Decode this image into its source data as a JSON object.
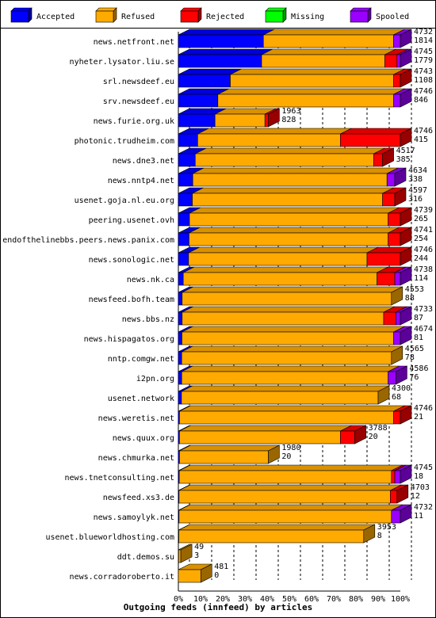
{
  "chart_data": {
    "type": "bar",
    "orientation": "horizontal",
    "stacked": true,
    "title": "Outgoing feeds (innfeed) by articles",
    "xlim": [
      0,
      100
    ],
    "x_ticks": [
      "0%",
      "10%",
      "20%",
      "30%",
      "40%",
      "50%",
      "60%",
      "70%",
      "80%",
      "90%",
      "100%"
    ],
    "grid": "vertical dashed",
    "legend_position": "top",
    "legend": [
      {
        "name": "Accepted",
        "color": "#0000ff"
      },
      {
        "name": "Refused",
        "color": "#ffaa00"
      },
      {
        "name": "Rejected",
        "color": "#ff0000"
      },
      {
        "name": "Missing",
        "color": "#00ff00"
      },
      {
        "name": "Spooled",
        "color": "#9900ff"
      }
    ],
    "categories": [
      {
        "label": "news.netfront.net",
        "offered": 4732,
        "accepted": 1814,
        "segments": [
          38.3,
          58.6,
          0,
          0,
          3.1
        ]
      },
      {
        "label": "nyheter.lysator.liu.se",
        "offered": 4745,
        "accepted": 1779,
        "segments": [
          37.5,
          55.5,
          5.5,
          0,
          1.5
        ]
      },
      {
        "label": "srl.newsdeef.eu",
        "offered": 4743,
        "accepted": 1108,
        "segments": [
          23.4,
          73.6,
          3.0,
          0,
          0
        ]
      },
      {
        "label": "srv.newsdeef.eu",
        "offered": 4746,
        "accepted": 846,
        "segments": [
          17.8,
          79.2,
          0,
          0,
          3.0
        ]
      },
      {
        "label": "news.furie.org.uk",
        "offered": 1963,
        "accepted": 828,
        "segments": [
          16.5,
          22.5,
          1.5,
          0,
          0
        ]
      },
      {
        "label": "photonic.trudheim.com",
        "offered": 4746,
        "accepted": 415,
        "segments": [
          8.7,
          64.3,
          27.0,
          0,
          0
        ]
      },
      {
        "label": "news.dne3.net",
        "offered": 4517,
        "accepted": 385,
        "segments": [
          7.6,
          80.4,
          4.0,
          0,
          0
        ]
      },
      {
        "label": "news.nntp4.net",
        "offered": 4634,
        "accepted": 338,
        "segments": [
          6.5,
          87.5,
          0,
          0,
          3.5
        ]
      },
      {
        "label": "usenet.goja.nl.eu.org",
        "offered": 4597,
        "accepted": 316,
        "segments": [
          6.3,
          85.7,
          5.5,
          0,
          0
        ]
      },
      {
        "label": "peering.usenet.ovh",
        "offered": 4739,
        "accepted": 265,
        "segments": [
          5.0,
          89.5,
          5.5,
          0,
          0
        ]
      },
      {
        "label": "endofthelinebbs.peers.news.panix.com",
        "offered": 4741,
        "accepted": 254,
        "segments": [
          4.8,
          89.7,
          5.5,
          0,
          0
        ]
      },
      {
        "label": "news.sonologic.net",
        "offered": 4746,
        "accepted": 244,
        "segments": [
          4.6,
          80.4,
          15.0,
          0,
          0
        ]
      },
      {
        "label": "news.nk.ca",
        "offered": 4738,
        "accepted": 114,
        "segments": [
          2.2,
          87.3,
          8.0,
          0,
          2.5
        ]
      },
      {
        "label": "newsfeed.bofh.team",
        "offered": 4553,
        "accepted": 88,
        "segments": [
          1.7,
          94.3,
          0,
          0,
          0
        ]
      },
      {
        "label": "news.bbs.nz",
        "offered": 4733,
        "accepted": 87,
        "segments": [
          1.7,
          90.8,
          5.5,
          0,
          2.0
        ]
      },
      {
        "label": "news.hispagatos.org",
        "offered": 4674,
        "accepted": 81,
        "segments": [
          1.6,
          95.4,
          0,
          0,
          3.0
        ]
      },
      {
        "label": "nntp.comgw.net",
        "offered": 4565,
        "accepted": 78,
        "segments": [
          1.5,
          94.5,
          0,
          0,
          0
        ]
      },
      {
        "label": "i2pn.org",
        "offered": 4586,
        "accepted": 76,
        "segments": [
          1.5,
          93.0,
          0,
          0,
          3.5
        ]
      },
      {
        "label": "usenet.network",
        "offered": 4300,
        "accepted": 68,
        "segments": [
          1.4,
          88.6,
          0,
          0,
          0
        ]
      },
      {
        "label": "news.weretis.net",
        "offered": 4746,
        "accepted": 21,
        "segments": [
          0.5,
          96.5,
          3.0,
          0,
          0
        ]
      },
      {
        "label": "news.quux.org",
        "offered": 3788,
        "accepted": 20,
        "segments": [
          0.5,
          72.5,
          6.5,
          0,
          0
        ]
      },
      {
        "label": "news.chmurka.net",
        "offered": 1980,
        "accepted": 20,
        "segments": [
          0.5,
          40.0,
          0,
          0,
          0
        ]
      },
      {
        "label": "news.tnetconsulting.net",
        "offered": 4745,
        "accepted": 18,
        "segments": [
          0.4,
          95.6,
          1.5,
          0,
          2.5
        ]
      },
      {
        "label": "newsfeed.xs3.de",
        "offered": 4703,
        "accepted": 12,
        "segments": [
          0.3,
          95.2,
          3.0,
          0,
          0
        ]
      },
      {
        "label": "news.samoylyk.net",
        "offered": 4732,
        "accepted": 11,
        "segments": [
          0.3,
          95.7,
          0,
          0,
          4.0
        ]
      },
      {
        "label": "usenet.blueworldhosting.com",
        "offered": 3953,
        "accepted": 8,
        "segments": [
          0.2,
          83.3,
          0,
          0,
          0
        ]
      },
      {
        "label": "ddt.demos.su",
        "offered": 49,
        "accepted": 3,
        "segments": [
          0.1,
          1.0,
          0,
          0,
          0
        ]
      },
      {
        "label": "news.corradoroberto.it",
        "offered": 481,
        "accepted": 0,
        "segments": [
          0,
          10.1,
          0,
          0,
          0
        ]
      }
    ]
  }
}
